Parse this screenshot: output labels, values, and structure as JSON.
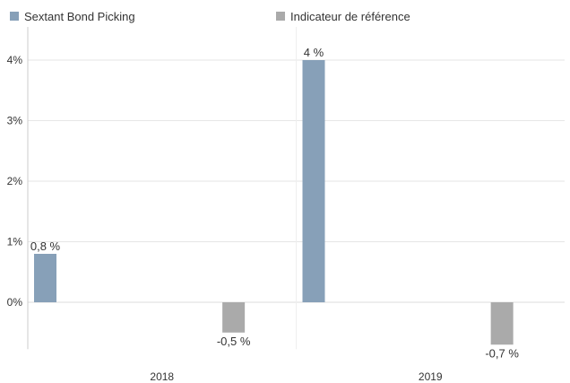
{
  "chart_data": {
    "type": "bar",
    "categories": [
      "2018",
      "2019"
    ],
    "series": [
      {
        "name": "Sextant Bond Picking",
        "values": [
          0.8,
          4.0
        ],
        "labels": [
          "0,8 %",
          "4 %"
        ],
        "color": "#87a0b8"
      },
      {
        "name": "Indicateur de référence",
        "values": [
          -0.5,
          -0.7
        ],
        "labels": [
          "-0,5 %",
          "-0,7 %"
        ],
        "color": "#aaaaaa"
      }
    ],
    "y_ticks": [
      0,
      1,
      2,
      3,
      4
    ],
    "y_tick_labels": [
      "0%",
      "1%",
      "2%",
      "3%",
      "4%"
    ],
    "ylim": [
      -0.7,
      4.4
    ],
    "title": "",
    "xlabel": "",
    "ylabel": "",
    "grid": true,
    "legend_position": "top-left",
    "text_color": "#333333",
    "grid_color": "#e6e6e6",
    "axis_color": "#cccccc"
  }
}
